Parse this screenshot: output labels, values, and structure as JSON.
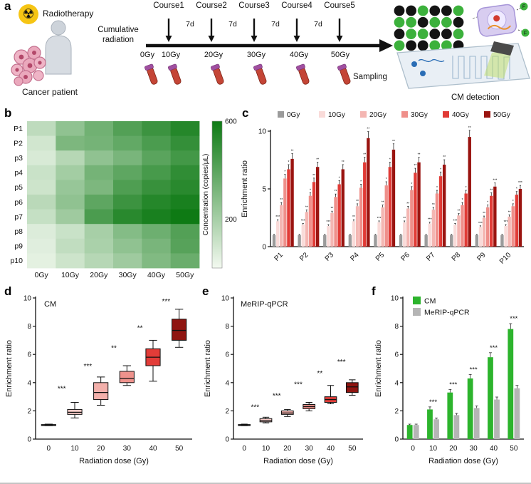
{
  "labels": {
    "a": "a",
    "b": "b",
    "c": "c",
    "d": "d",
    "e": "e",
    "f": "f"
  },
  "panel_a": {
    "radiation_icon_glyph": "☢",
    "radiotherapy": "Radiotherapy",
    "cancer_patient": "Cancer patient",
    "cumulative_radiation": "Cumulative radiation",
    "courses": [
      "Course1",
      "Course2",
      "Course3",
      "Course4",
      "Course5"
    ],
    "interval_label": "7d",
    "doses": [
      "0Gy",
      "10Gy",
      "20Gy",
      "30Gy",
      "40Gy",
      "50Gy"
    ],
    "sampling": "Sampling",
    "cm_detection": "CM detection",
    "fluor_label": "F",
    "dot_grid": [
      "BBGBBG",
      "GGBGGB",
      "BGGBBG",
      "GBBGGB"
    ],
    "dot_colors": {
      "B": "#141414",
      "G": "#3cb13c"
    }
  },
  "chart_data": [
    {
      "id": "b",
      "type": "heatmap",
      "rows": [
        "P1",
        "P2",
        "p3",
        "p4",
        "p5",
        "p6",
        "p7",
        "p8",
        "p9",
        "p10"
      ],
      "columns": [
        "0Gy",
        "10Gy",
        "20Gy",
        "30Gy",
        "40Gy",
        "50Gy"
      ],
      "values": [
        [
          140,
          260,
          340,
          420,
          480,
          540
        ],
        [
          90,
          310,
          330,
          380,
          440,
          500
        ],
        [
          70,
          160,
          260,
          320,
          400,
          460
        ],
        [
          110,
          210,
          330,
          390,
          450,
          510
        ],
        [
          100,
          240,
          310,
          430,
          490,
          530
        ],
        [
          150,
          260,
          390,
          480,
          540,
          570
        ],
        [
          120,
          220,
          440,
          530,
          570,
          600
        ],
        [
          60,
          110,
          200,
          290,
          350,
          420
        ],
        [
          50,
          130,
          190,
          260,
          320,
          410
        ],
        [
          40,
          100,
          160,
          220,
          300,
          360
        ]
      ],
      "colorbar": {
        "label": "Concentration (copies/μL)",
        "ticks": [
          600,
          200
        ],
        "range": [
          0,
          600
        ],
        "low_color": "#f3f9f0",
        "high_color": "#0e7a14"
      }
    },
    {
      "id": "c",
      "type": "bar",
      "categories": [
        "P1",
        "P2",
        "P3",
        "P4",
        "P5",
        "P6",
        "P7",
        "P8",
        "P9",
        "P10"
      ],
      "series": [
        {
          "name": "0Gy",
          "color": "#9b9b9b",
          "values": [
            1,
            1,
            1,
            1,
            1,
            1,
            1,
            1,
            1,
            1
          ]
        },
        {
          "name": "10Gy",
          "color": "#f9dbd9",
          "values": [
            2.2,
            1.9,
            1.8,
            2.2,
            2.1,
            2.1,
            2.0,
            1.9,
            1.7,
            1.8
          ]
        },
        {
          "name": "20Gy",
          "color": "#f4b6b2",
          "values": [
            3.6,
            3.0,
            2.9,
            3.5,
            3.4,
            3.3,
            3.2,
            2.7,
            2.5,
            2.6
          ]
        },
        {
          "name": "30Gy",
          "color": "#ef8f8a",
          "values": [
            5.9,
            4.4,
            4.3,
            5.1,
            5.3,
            4.9,
            4.6,
            3.6,
            3.4,
            3.5
          ]
        },
        {
          "name": "40Gy",
          "color": "#e13b36",
          "values": [
            6.7,
            5.6,
            5.4,
            7.3,
            6.9,
            6.4,
            6.1,
            4.6,
            4.4,
            4.5
          ]
        },
        {
          "name": "50Gy",
          "color": "#9a1410",
          "values": [
            7.6,
            6.9,
            6.7,
            9.4,
            8.4,
            7.3,
            7.1,
            9.5,
            5.2,
            5.0
          ]
        }
      ],
      "sig": [
        [
          "***",
          "**",
          "*",
          "*",
          "**"
        ],
        [
          "***",
          "**",
          "*",
          "**",
          "**"
        ],
        [
          "***",
          "**",
          "**",
          "*",
          "**"
        ],
        [
          "**",
          "**",
          "*",
          "**",
          "**"
        ],
        [
          "***",
          "**",
          "*",
          "*",
          "**"
        ],
        [
          "**",
          "**",
          "*",
          "**",
          "**"
        ],
        [
          "***",
          "**",
          "*",
          "*",
          "**"
        ],
        [
          "***",
          "**",
          "*",
          "*",
          "**"
        ],
        [
          "***",
          "**",
          "*",
          "**",
          "***"
        ],
        [
          "***",
          "**",
          "*",
          "*",
          "***"
        ]
      ],
      "err_frac": 0.06,
      "ylabel": "Enrichment ratio",
      "ylim": [
        0,
        10
      ],
      "yticks": [
        0,
        5,
        10
      ],
      "legend_position": "top"
    },
    {
      "id": "d",
      "type": "box",
      "title": "CM",
      "categories": [
        "0",
        "10",
        "20",
        "30",
        "40",
        "50"
      ],
      "xlabel": "Radiation dose (Gy)",
      "ylabel": "Enrichment ratio",
      "ylim": [
        0,
        10
      ],
      "yticks": [
        0,
        2,
        4,
        6,
        8,
        10
      ],
      "boxes": [
        {
          "low": 0.95,
          "q1": 0.98,
          "med": 1.0,
          "q3": 1.03,
          "high": 1.06,
          "color": "#ffffff"
        },
        {
          "low": 1.5,
          "q1": 1.75,
          "med": 1.9,
          "q3": 2.1,
          "high": 2.6,
          "color": "#f7cbc8"
        },
        {
          "low": 2.4,
          "q1": 2.8,
          "med": 3.3,
          "q3": 4.0,
          "high": 4.4,
          "color": "#f3b0ab"
        },
        {
          "low": 3.8,
          "q1": 4.0,
          "med": 4.3,
          "q3": 4.8,
          "high": 5.2,
          "color": "#ef928c"
        },
        {
          "low": 4.1,
          "q1": 5.2,
          "med": 5.8,
          "q3": 6.4,
          "high": 7.0,
          "color": "#e23c38"
        },
        {
          "low": 6.5,
          "q1": 7.0,
          "med": 7.7,
          "q3": 8.5,
          "high": 9.2,
          "color": "#8f1511"
        }
      ],
      "sig": [
        {
          "a": 0,
          "b": 1,
          "y": 3.4,
          "label": "***"
        },
        {
          "a": 1,
          "b": 2,
          "y": 5.0,
          "label": "***"
        },
        {
          "a": 2,
          "b": 3,
          "y": 6.3,
          "label": "**"
        },
        {
          "a": 3,
          "b": 4,
          "y": 7.7,
          "label": "**"
        },
        {
          "a": 4,
          "b": 5,
          "y": 9.6,
          "label": "***"
        }
      ]
    },
    {
      "id": "e",
      "type": "box",
      "title": "MeRIP-qPCR",
      "categories": [
        "0",
        "10",
        "20",
        "30",
        "40",
        "50"
      ],
      "xlabel": "Radiation dose (Gy)",
      "ylabel": "Enrichment ratio",
      "ylim": [
        0,
        10
      ],
      "yticks": [
        0,
        2,
        4,
        6,
        8,
        10
      ],
      "boxes": [
        {
          "low": 0.95,
          "q1": 0.98,
          "med": 1.0,
          "q3": 1.03,
          "high": 1.06,
          "color": "#ffffff"
        },
        {
          "low": 1.15,
          "q1": 1.22,
          "med": 1.3,
          "q3": 1.45,
          "high": 1.55,
          "color": "#f7cbc8"
        },
        {
          "low": 1.6,
          "q1": 1.75,
          "med": 1.85,
          "q3": 2.0,
          "high": 2.1,
          "color": "#f3b0ab"
        },
        {
          "low": 2.0,
          "q1": 2.15,
          "med": 2.3,
          "q3": 2.45,
          "high": 2.6,
          "color": "#ef928c"
        },
        {
          "low": 2.5,
          "q1": 2.6,
          "med": 2.8,
          "q3": 3.0,
          "high": 3.8,
          "color": "#e23c38"
        },
        {
          "low": 3.1,
          "q1": 3.3,
          "med": 3.7,
          "q3": 4.0,
          "high": 4.2,
          "color": "#8f1511"
        }
      ],
      "sig": [
        {
          "a": 0,
          "b": 1,
          "y": 2.1,
          "label": "***"
        },
        {
          "a": 1,
          "b": 2,
          "y": 2.9,
          "label": "***"
        },
        {
          "a": 2,
          "b": 3,
          "y": 3.7,
          "label": "***"
        },
        {
          "a": 3,
          "b": 4,
          "y": 4.5,
          "label": "**"
        },
        {
          "a": 4,
          "b": 5,
          "y": 5.3,
          "label": "***"
        }
      ]
    },
    {
      "id": "f",
      "type": "bar",
      "categories": [
        "0",
        "10",
        "20",
        "30",
        "40",
        "50"
      ],
      "series": [
        {
          "name": "CM",
          "color": "#2db42d",
          "values": [
            1.0,
            2.1,
            3.3,
            4.3,
            5.8,
            7.8
          ],
          "errors": [
            0.06,
            0.18,
            0.22,
            0.28,
            0.32,
            0.38
          ]
        },
        {
          "name": "MeRIP-qPCR",
          "color": "#b5b5b5",
          "values": [
            1.0,
            1.4,
            1.7,
            2.2,
            2.8,
            3.6
          ],
          "errors": [
            0.06,
            0.1,
            0.12,
            0.15,
            0.18,
            0.2
          ]
        }
      ],
      "group_sig": [
        "",
        "***",
        "***",
        "***",
        "***",
        "***"
      ],
      "xlabel": "Radiation dose (Gy)",
      "ylabel": "Enrichment ratio",
      "ylim": [
        0,
        10
      ],
      "yticks": [
        0,
        2,
        4,
        6,
        8,
        10
      ],
      "legend_position": "top-left"
    }
  ]
}
